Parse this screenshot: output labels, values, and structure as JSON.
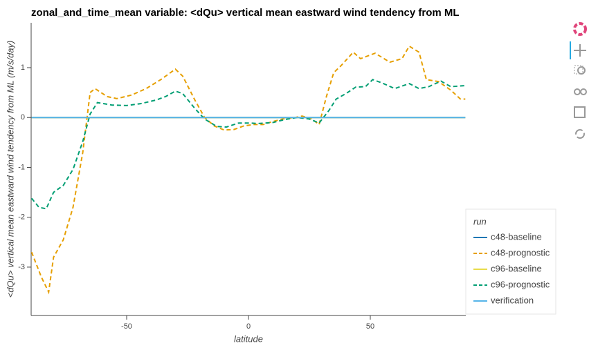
{
  "chart_data": {
    "type": "line",
    "title": "zonal_and_time_mean  variable: <dQu> vertical mean eastward wind tendency from ML",
    "xlabel": "latitude",
    "ylabel": "<dQu> vertical mean eastward wind tendency from ML (m/s/day)",
    "xlim": [
      -89.2,
      89.2
    ],
    "ylim": [
      -3.97,
      1.9
    ],
    "xticks": [
      -50,
      0,
      50
    ],
    "yticks": [
      -3,
      -2,
      -1,
      0,
      1
    ],
    "legend_title": "run",
    "legend_position": "right",
    "series": [
      {
        "name": "c48-baseline",
        "color": "#1f77b4",
        "line_dash": "solid",
        "x": [
          -89,
          89
        ],
        "values": [
          0,
          0
        ]
      },
      {
        "name": "c48-prognostic",
        "color": "#e69f00",
        "line_dash": "dashed",
        "x": [
          -89,
          -85,
          -82,
          -80,
          -76,
          -72,
          -68,
          -65,
          -63,
          -58,
          -54,
          -48,
          -42,
          -36,
          -30,
          -27,
          -22,
          -18,
          -14,
          -10,
          -6,
          -2,
          2,
          6,
          10,
          14,
          18,
          22,
          26,
          29,
          32,
          35,
          38,
          43,
          46,
          52,
          58,
          63,
          66,
          70,
          73,
          78,
          83,
          87,
          89
        ],
        "values": [
          -2.7,
          -3.2,
          -3.5,
          -2.8,
          -2.45,
          -1.8,
          -0.7,
          0.5,
          0.58,
          0.42,
          0.38,
          0.45,
          0.58,
          0.76,
          0.97,
          0.83,
          0.35,
          0,
          -0.17,
          -0.25,
          -0.24,
          -0.17,
          -0.14,
          -0.14,
          -0.08,
          -0.03,
          -0.01,
          0.03,
          -0.03,
          -0.14,
          0.42,
          0.9,
          1.04,
          1.31,
          1.18,
          1.29,
          1.11,
          1.18,
          1.43,
          1.31,
          0.76,
          0.72,
          0.55,
          0.37,
          0.37
        ]
      },
      {
        "name": "c96-baseline",
        "color": "#e8dc4a",
        "line_dash": "solid",
        "x": [
          -89,
          89
        ],
        "values": [
          0,
          0
        ]
      },
      {
        "name": "c96-prognostic",
        "color": "#009e73",
        "line_dash": "dashed",
        "x": [
          -89,
          -86,
          -83,
          -80,
          -76,
          -72,
          -68,
          -65,
          -62,
          -56,
          -50,
          -44,
          -38,
          -34,
          -30,
          -27,
          -22,
          -18,
          -13,
          -9,
          -4,
          0,
          4,
          10,
          15,
          20,
          25,
          29,
          33,
          36,
          40,
          44,
          48,
          51,
          55,
          60,
          66,
          70,
          74,
          79,
          83,
          89
        ],
        "values": [
          -1.62,
          -1.8,
          -1.83,
          -1.5,
          -1.36,
          -1.04,
          -0.48,
          0.07,
          0.3,
          0.25,
          0.24,
          0.28,
          0.35,
          0.42,
          0.53,
          0.48,
          0.18,
          -0.03,
          -0.18,
          -0.19,
          -0.11,
          -0.11,
          -0.12,
          -0.1,
          -0.04,
          0,
          -0.03,
          -0.11,
          0.14,
          0.37,
          0.48,
          0.61,
          0.62,
          0.76,
          0.69,
          0.58,
          0.68,
          0.58,
          0.62,
          0.73,
          0.62,
          0.64
        ]
      },
      {
        "name": "verification",
        "color": "#56b4e9",
        "line_dash": "solid",
        "x": [
          -89,
          89
        ],
        "values": [
          0,
          0
        ]
      }
    ]
  }
}
